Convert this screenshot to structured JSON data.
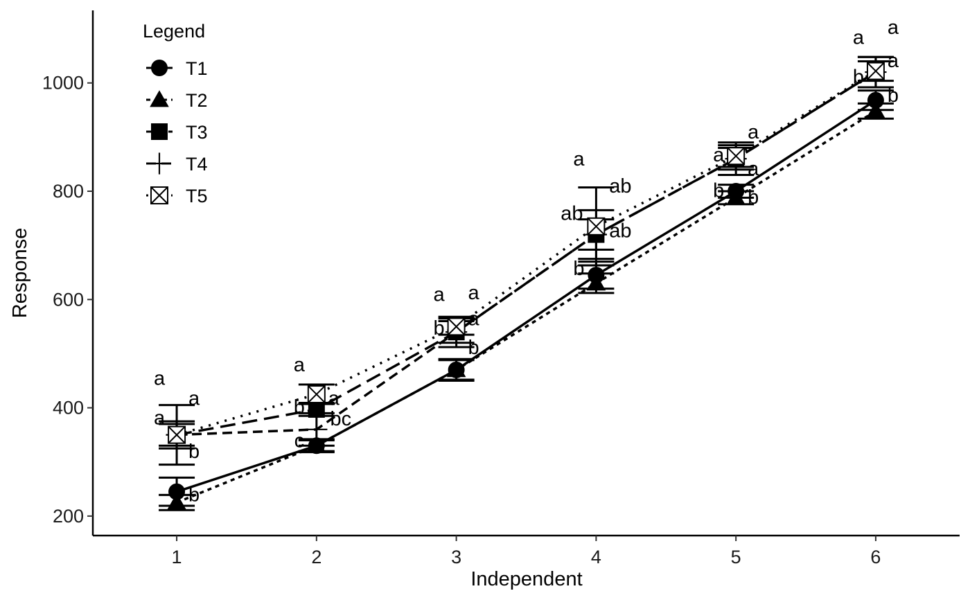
{
  "chart_data": {
    "type": "line",
    "xlabel": "Independent",
    "ylabel": "Response",
    "x": [
      1,
      2,
      3,
      4,
      5,
      6
    ],
    "x_tick_labels": [
      "1",
      "2",
      "3",
      "4",
      "5",
      "6"
    ],
    "y_ticks": [
      200,
      400,
      600,
      800,
      1000
    ],
    "y_tick_labels": [
      "200",
      "400",
      "600",
      "800",
      "1000"
    ],
    "xlim": [
      0.4,
      6.6
    ],
    "ylim": [
      164,
      1134
    ],
    "grid": false,
    "legend": {
      "title": "Legend",
      "placement": "top-left",
      "entries": [
        "T1",
        "T2",
        "T3",
        "T4",
        "T5"
      ]
    },
    "series": [
      {
        "name": "T1",
        "marker": "circle",
        "line": "solid",
        "values": [
          245,
          330,
          470,
          645,
          800,
          968
        ],
        "errors": [
          26,
          12,
          18,
          25,
          12,
          18
        ]
      },
      {
        "name": "T2",
        "marker": "triangle",
        "line": "dotted",
        "values": [
          225,
          330,
          470,
          630,
          788,
          948
        ],
        "errors": [
          14,
          10,
          20,
          18,
          12,
          14
        ]
      },
      {
        "name": "T3",
        "marker": "square",
        "line": "longdash",
        "values": [
          350,
          397,
          540,
          720,
          860,
          1020
        ],
        "errors": [
          20,
          12,
          20,
          28,
          20,
          28
        ]
      },
      {
        "name": "T4",
        "marker": "plus",
        "line": "dashed",
        "values": [
          350,
          360,
          540,
          720,
          860,
          1020
        ],
        "errors": [
          55,
          30,
          28,
          45,
          30,
          28
        ]
      },
      {
        "name": "T5",
        "marker": "boxx",
        "line": "dotted-sparse",
        "values": [
          350,
          425,
          550,
          735,
          865,
          1022
        ],
        "errors": [
          25,
          18,
          15,
          72,
          20,
          18
        ]
      }
    ],
    "annotations": [
      {
        "x": 1,
        "labels": [
          {
            "text": "a",
            "y": 455,
            "dx": -25
          },
          {
            "text": "a",
            "y": 418,
            "dx": 25
          },
          {
            "text": "a",
            "y": 382,
            "dx": -25
          },
          {
            "text": "b",
            "y": 320,
            "dx": 25
          },
          {
            "text": "b",
            "y": 240,
            "dx": 25
          }
        ]
      },
      {
        "x": 2,
        "labels": [
          {
            "text": "a",
            "y": 480,
            "dx": -25
          },
          {
            "text": "a",
            "y": 418,
            "dx": 25
          },
          {
            "text": "b",
            "y": 402,
            "dx": -25
          },
          {
            "text": "bc",
            "y": 380,
            "dx": 35
          },
          {
            "text": "c",
            "y": 340,
            "dx": -25
          }
        ]
      },
      {
        "x": 3,
        "labels": [
          {
            "text": "a",
            "y": 610,
            "dx": -25
          },
          {
            "text": "a",
            "y": 613,
            "dx": 25
          },
          {
            "text": "a",
            "y": 565,
            "dx": 25
          },
          {
            "text": "b",
            "y": 548,
            "dx": -25
          },
          {
            "text": "b",
            "y": 512,
            "dx": 25
          }
        ]
      },
      {
        "x": 4,
        "labels": [
          {
            "text": "a",
            "y": 860,
            "dx": -25
          },
          {
            "text": "ab",
            "y": 810,
            "dx": 35
          },
          {
            "text": "ab",
            "y": 760,
            "dx": -35
          },
          {
            "text": "ab",
            "y": 728,
            "dx": 35
          },
          {
            "text": "b",
            "y": 658,
            "dx": -25
          }
        ]
      },
      {
        "x": 5,
        "labels": [
          {
            "text": "a",
            "y": 910,
            "dx": 25
          },
          {
            "text": "a",
            "y": 868,
            "dx": -25
          },
          {
            "text": "a",
            "y": 842,
            "dx": 25
          },
          {
            "text": "b",
            "y": 790,
            "dx": 25
          },
          {
            "text": "b",
            "y": 802,
            "dx": -25
          }
        ]
      },
      {
        "x": 6,
        "labels": [
          {
            "text": "a",
            "y": 1103,
            "dx": 25
          },
          {
            "text": "a",
            "y": 1085,
            "dx": -25
          },
          {
            "text": "a",
            "y": 1042,
            "dx": 25
          },
          {
            "text": "b",
            "y": 1012,
            "dx": -25
          },
          {
            "text": "b",
            "y": 978,
            "dx": 25
          }
        ]
      }
    ]
  }
}
